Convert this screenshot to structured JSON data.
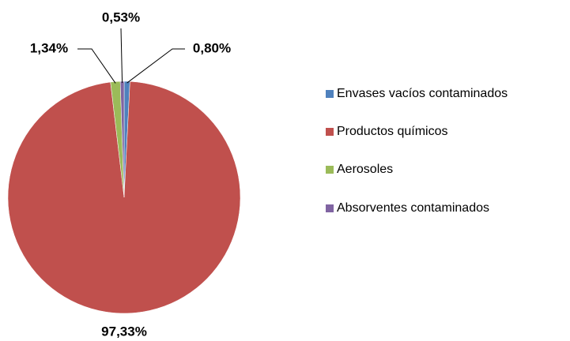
{
  "chart_data": {
    "type": "pie",
    "categories": [
      "Envases vacíos contaminados",
      "Productos químicos",
      "Aerosoles",
      "Absorventes contaminados"
    ],
    "values": [
      0.8,
      97.33,
      1.34,
      0.53
    ],
    "value_labels": [
      "0,80%",
      "97,33%",
      "1,34%",
      "0,53%"
    ],
    "colors": [
      "#4f81bd",
      "#c0504d",
      "#9bbb59",
      "#8064a2"
    ],
    "legend": "right"
  }
}
